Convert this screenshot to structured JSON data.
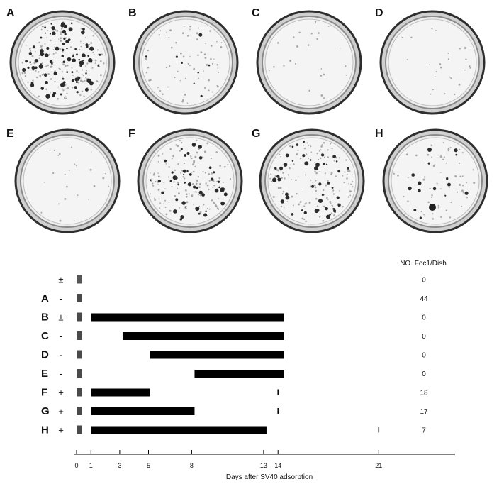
{
  "panels": [
    {
      "label": "A",
      "density": "heavy"
    },
    {
      "label": "B",
      "density": "light"
    },
    {
      "label": "C",
      "density": "none"
    },
    {
      "label": "D",
      "density": "none"
    },
    {
      "label": "E",
      "density": "none"
    },
    {
      "label": "F",
      "density": "moderate"
    },
    {
      "label": "G",
      "density": "moderate"
    },
    {
      "label": "H",
      "density": "sparse"
    }
  ],
  "chart_data": {
    "type": "bar",
    "orientation": "horizontal",
    "column_header": "NO. Foc1/Dish",
    "xlabel": "Days after SV40 adsorption",
    "xticks": [
      0,
      1,
      3,
      5,
      8,
      13,
      14,
      21
    ],
    "xlim": [
      0,
      21
    ],
    "rows": [
      {
        "label": "",
        "sign": "±",
        "start": null,
        "end": null,
        "tick": null,
        "foci": "0"
      },
      {
        "label": "A",
        "sign": "-",
        "start": null,
        "end": null,
        "tick": null,
        "foci": "44"
      },
      {
        "label": "B",
        "sign": "±",
        "start": 1,
        "end": 14.4,
        "tick": null,
        "foci": "0"
      },
      {
        "label": "C",
        "sign": "-",
        "start": 3.2,
        "end": 14.4,
        "tick": null,
        "foci": "0"
      },
      {
        "label": "D",
        "sign": "-",
        "start": 5.1,
        "end": 14.4,
        "tick": null,
        "foci": "0"
      },
      {
        "label": "E",
        "sign": "-",
        "start": 8.2,
        "end": 14.4,
        "tick": null,
        "foci": "0"
      },
      {
        "label": "F",
        "sign": "+",
        "start": 1,
        "end": 5.1,
        "tick": 14,
        "foci": "18"
      },
      {
        "label": "G",
        "sign": "+",
        "start": 1,
        "end": 8.2,
        "tick": 14,
        "foci": "17"
      },
      {
        "label": "H",
        "sign": "+",
        "start": 1,
        "end": 13.2,
        "tick": 21,
        "foci": "7"
      }
    ]
  }
}
